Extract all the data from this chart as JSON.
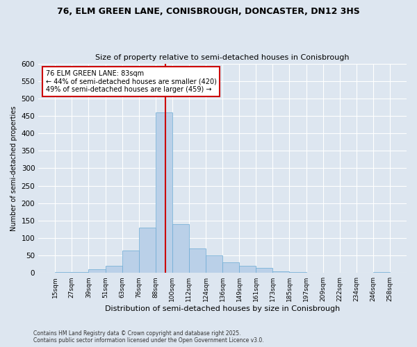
{
  "title1": "76, ELM GREEN LANE, CONISBROUGH, DONCASTER, DN12 3HS",
  "title2": "Size of property relative to semi-detached houses in Conisbrough",
  "xlabel": "Distribution of semi-detached houses by size in Conisbrough",
  "ylabel": "Number of semi-detached properties",
  "bar_labels": [
    "15sqm",
    "27sqm",
    "39sqm",
    "51sqm",
    "63sqm",
    "76sqm",
    "88sqm",
    "100sqm",
    "112sqm",
    "124sqm",
    "136sqm",
    "149sqm",
    "161sqm",
    "173sqm",
    "185sqm",
    "197sqm",
    "209sqm",
    "222sqm",
    "234sqm",
    "246sqm",
    "258sqm"
  ],
  "bar_values": [
    3,
    3,
    10,
    20,
    65,
    130,
    460,
    140,
    70,
    50,
    30,
    20,
    15,
    5,
    3,
    0,
    0,
    0,
    0,
    3
  ],
  "property_label": "76 ELM GREEN LANE: 83sqm",
  "pct_smaller": 44,
  "pct_smaller_count": 420,
  "pct_larger": 49,
  "pct_larger_count": 459,
  "bar_color": "#bad0e8",
  "bar_edge_color": "#6aaad4",
  "vline_color": "#cc0000",
  "bg_color": "#dde6f0",
  "grid_color": "#ffffff",
  "footnote": "Contains HM Land Registry data © Crown copyright and database right 2025.\nContains public sector information licensed under the Open Government Licence v3.0.",
  "annotation_box_color": "#ffffff",
  "annotation_box_edge": "#cc0000",
  "ylim": [
    0,
    600
  ],
  "yticks": [
    0,
    50,
    100,
    150,
    200,
    250,
    300,
    350,
    400,
    450,
    500,
    550,
    600
  ]
}
